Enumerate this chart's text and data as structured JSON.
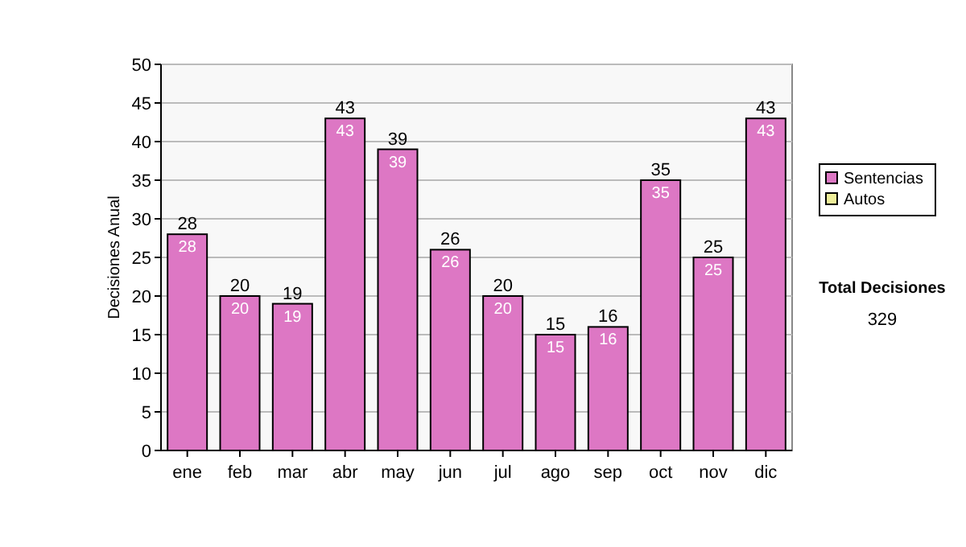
{
  "chart_data": {
    "type": "bar",
    "stacked": true,
    "ylabel": "Decisiones Anual",
    "categories": [
      "ene",
      "feb",
      "mar",
      "abr",
      "may",
      "jun",
      "jul",
      "ago",
      "sep",
      "oct",
      "nov",
      "dic"
    ],
    "series": [
      {
        "name": "Sentencias",
        "color": "#dd77c4",
        "values": [
          28,
          20,
          19,
          43,
          39,
          26,
          20,
          15,
          16,
          35,
          25,
          43
        ],
        "value_labels": [
          "28",
          "20",
          "19",
          "43",
          "39",
          "26",
          "20",
          "15",
          "16",
          "35",
          "25",
          "43"
        ]
      },
      {
        "name": "Autos",
        "color": "#eeee99",
        "values": [
          0,
          0,
          0,
          0,
          0,
          0,
          0,
          0,
          0,
          0,
          0,
          0
        ]
      }
    ],
    "ylim": [
      0,
      50
    ],
    "yticks": [
      0,
      5,
      10,
      15,
      20,
      25,
      30,
      35,
      40,
      45,
      50
    ],
    "grid": "y",
    "legend": "right",
    "totals": [
      "28",
      "20",
      "19",
      "43",
      "39",
      "26",
      "20",
      "15",
      "16",
      "35",
      "25",
      "43"
    ],
    "annotations": [
      "Total Decisiones",
      "329"
    ]
  }
}
